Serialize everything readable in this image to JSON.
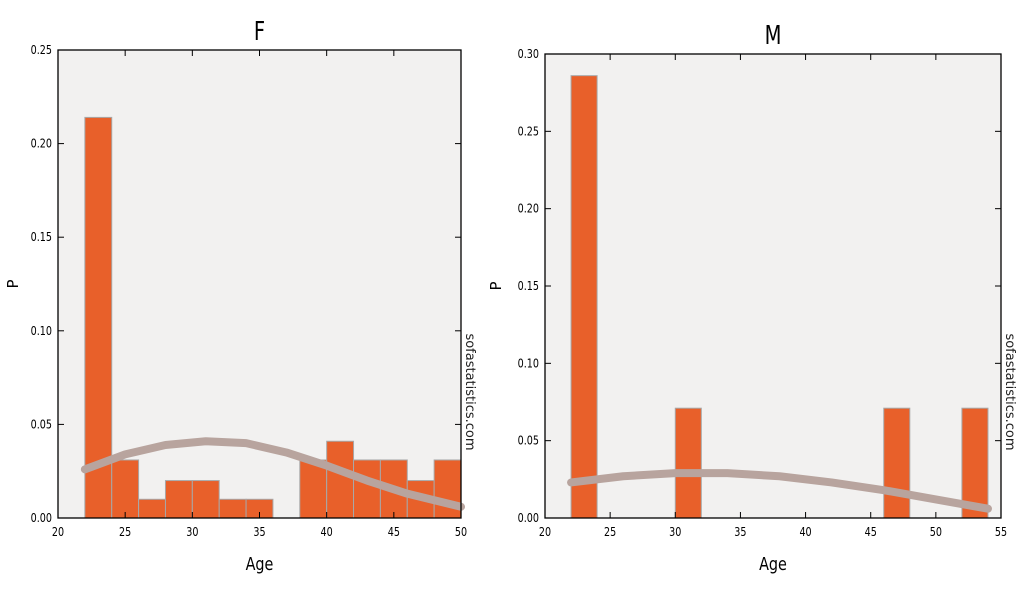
{
  "chart_data": [
    {
      "type": "bar",
      "title": "F",
      "xlabel": "Age",
      "ylabel": "P",
      "xlim": [
        20,
        50
      ],
      "ylim": [
        0,
        0.25
      ],
      "xticks": [
        "20",
        "25",
        "30",
        "35",
        "40",
        "45",
        "50"
      ],
      "yticks": [
        "0.00",
        "0.05",
        "0.10",
        "0.15",
        "0.20",
        "0.25"
      ],
      "bin_width": 2,
      "bins": [
        22,
        24,
        26,
        28,
        30,
        32,
        34,
        36,
        38,
        40,
        42,
        44,
        46,
        48
      ],
      "values": [
        0.214,
        0.031,
        0.01,
        0.02,
        0.02,
        0.01,
        0.01,
        0.0,
        0.031,
        0.041,
        0.031,
        0.031,
        0.02,
        0.031
      ],
      "normal_curve": {
        "x": [
          22,
          25,
          28,
          31,
          34,
          37,
          40,
          43,
          46,
          50
        ],
        "y": [
          0.026,
          0.034,
          0.039,
          0.041,
          0.04,
          0.035,
          0.028,
          0.02,
          0.013,
          0.006
        ]
      },
      "watermark": "sofastatistics.com",
      "grid": false
    },
    {
      "type": "bar",
      "title": "M",
      "xlabel": "Age",
      "ylabel": "P",
      "xlim": [
        20,
        55
      ],
      "ylim": [
        0,
        0.3
      ],
      "xticks": [
        "20",
        "25",
        "30",
        "35",
        "40",
        "45",
        "50",
        "55"
      ],
      "yticks": [
        "0.00",
        "0.05",
        "0.10",
        "0.15",
        "0.20",
        "0.25",
        "0.30"
      ],
      "bin_width": 2,
      "bins": [
        22,
        30,
        46,
        52
      ],
      "values": [
        0.286,
        0.071,
        0.071,
        0.071
      ],
      "normal_curve": {
        "x": [
          22,
          26,
          30,
          34,
          38,
          42,
          46,
          50,
          54
        ],
        "y": [
          0.023,
          0.027,
          0.029,
          0.029,
          0.027,
          0.023,
          0.018,
          0.012,
          0.006
        ]
      },
      "watermark": "sofastatistics.com",
      "grid": false
    }
  ],
  "colors": {
    "bar": "#e8602a",
    "bar_edge": "#a8a8a8",
    "curve": "#b8a49e",
    "plot_bg": "#f2f1f0"
  }
}
